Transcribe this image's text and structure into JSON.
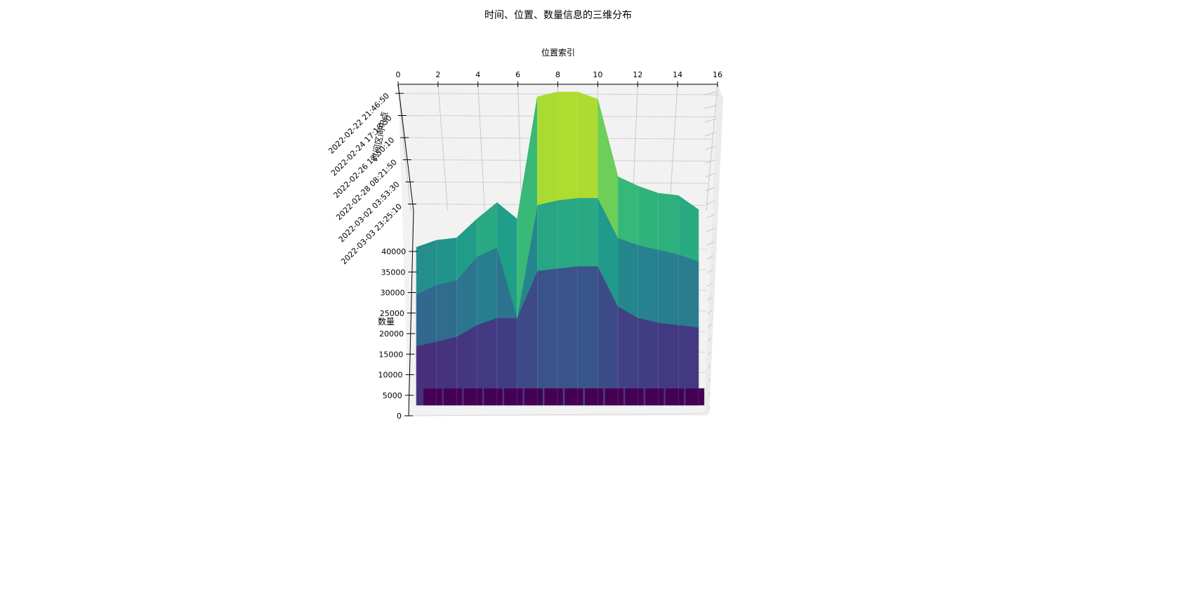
{
  "chart_data": {
    "type": "surface3d",
    "title": "时间、位置、数量信息的三维分布",
    "xlabel": "位置索引",
    "ylabel": "时间区间中点",
    "zlabel": "数量",
    "x_ticks": [
      "0",
      "2",
      "4",
      "6",
      "8",
      "10",
      "12",
      "14",
      "16"
    ],
    "y_ticks": [
      "2022-02-22 21:46:50",
      "2022-02-24 17:18:30",
      "2022-02-26 12:50:10",
      "2022-02-28 08:21:50",
      "2022-03-02 03:53:30",
      "2022-03-03 23:25:10"
    ],
    "z_ticks": [
      "0",
      "5000",
      "10000",
      "15000",
      "20000",
      "25000",
      "30000",
      "35000",
      "40000"
    ],
    "xlim": [
      0,
      16
    ],
    "zlim": [
      0,
      45000
    ],
    "colormap": "viridis",
    "x": [
      1,
      2,
      3,
      4,
      5,
      6,
      7,
      8,
      9,
      10,
      11,
      12,
      13,
      14,
      15
    ],
    "series": [
      {
        "values": [
          2000,
          2000,
          2000,
          2000,
          2000,
          2000,
          2000,
          2000,
          2000,
          2000,
          2000,
          2000,
          2000,
          2000,
          2000
        ]
      },
      {
        "values": [
          16000,
          17000,
          18000,
          20500,
          22000,
          22000,
          32000,
          32500,
          33000,
          33000,
          24500,
          22000,
          21000,
          20500,
          20000
        ]
      },
      {
        "values": [
          27000,
          29000,
          30000,
          35000,
          37000,
          22000,
          46000,
          47000,
          47500,
          47500,
          39000,
          37500,
          36500,
          35500,
          34000
        ]
      },
      {
        "values": [
          37000,
          38500,
          39000,
          43000,
          46500,
          43000,
          69000,
          70000,
          70000,
          68500,
          52000,
          50000,
          48500,
          48000,
          45000
        ]
      }
    ]
  }
}
